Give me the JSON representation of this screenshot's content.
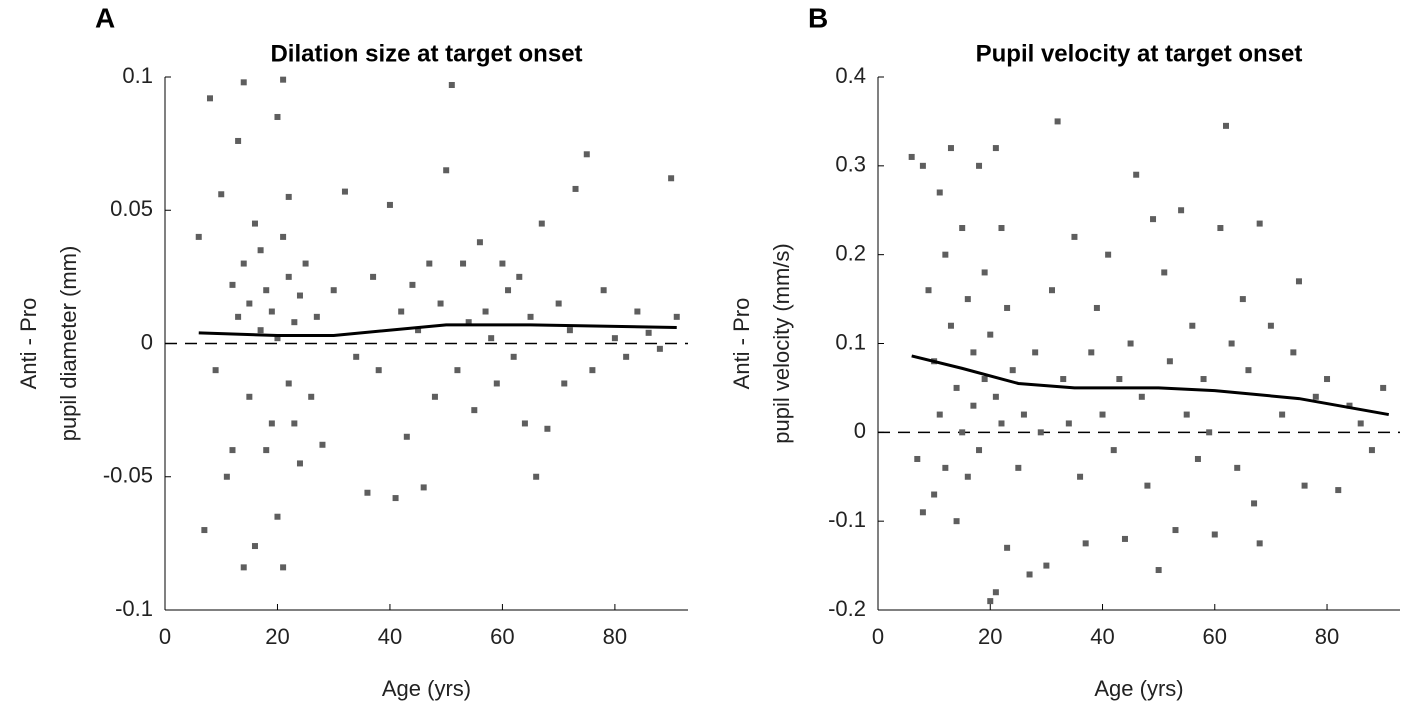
{
  "chart_data": [
    {
      "type": "scatter",
      "panel": "A",
      "title": "Dilation size at target onset",
      "xlabel": "Age (yrs)",
      "ylabel": [
        "Anti - Pro",
        "pupil diameter (mm)"
      ],
      "xlim": [
        0,
        93
      ],
      "ylim": [
        -0.1,
        0.1
      ],
      "xticks": [
        0,
        20,
        40,
        60,
        80
      ],
      "yticks": [
        -0.1,
        -0.05,
        0,
        0.05,
        0.1
      ],
      "hline": 0,
      "series": [
        {
          "type": "scatter",
          "color": "#5e5e5e",
          "x": [
            6,
            8,
            7,
            9,
            10,
            11,
            12,
            12,
            13,
            13,
            14,
            14,
            14,
            15,
            15,
            16,
            16,
            17,
            17,
            18,
            18,
            19,
            19,
            20,
            20,
            20,
            21,
            21,
            21,
            22,
            22,
            22,
            23,
            23,
            24,
            24,
            25,
            26,
            27,
            28,
            30,
            32,
            34,
            36,
            37,
            38,
            40,
            41,
            42,
            43,
            44,
            45,
            46,
            47,
            48,
            49,
            50,
            51,
            52,
            53,
            54,
            55,
            56,
            57,
            58,
            59,
            60,
            61,
            62,
            63,
            64,
            65,
            66,
            67,
            68,
            70,
            71,
            72,
            73,
            75,
            76,
            78,
            80,
            82,
            84,
            86,
            88,
            90,
            91
          ],
          "values": [
            0.04,
            0.092,
            -0.07,
            -0.01,
            0.056,
            -0.05,
            0.022,
            -0.04,
            0.076,
            0.01,
            0.098,
            -0.084,
            0.03,
            0.015,
            -0.02,
            0.045,
            -0.076,
            0.005,
            0.035,
            -0.04,
            0.02,
            0.012,
            -0.03,
            0.085,
            -0.065,
            0.002,
            0.099,
            -0.084,
            0.04,
            0.025,
            -0.015,
            0.055,
            -0.03,
            0.008,
            0.018,
            -0.045,
            0.03,
            -0.02,
            0.01,
            -0.038,
            0.02,
            0.057,
            -0.005,
            -0.056,
            0.025,
            -0.01,
            0.052,
            -0.058,
            0.012,
            -0.035,
            0.022,
            0.005,
            -0.054,
            0.03,
            -0.02,
            0.015,
            0.065,
            0.097,
            -0.01,
            0.03,
            0.008,
            -0.025,
            0.038,
            0.012,
            0.002,
            -0.015,
            0.03,
            0.02,
            -0.005,
            0.025,
            -0.03,
            0.01,
            -0.05,
            0.045,
            -0.032,
            0.015,
            -0.015,
            0.005,
            0.058,
            0.071,
            -0.01,
            0.02,
            0.002,
            -0.005,
            0.012,
            0.004,
            -0.002,
            0.062,
            0.01
          ]
        },
        {
          "type": "line",
          "color": "#000000",
          "x": [
            6,
            20,
            30,
            50,
            65,
            91
          ],
          "values": [
            0.004,
            0.003,
            0.003,
            0.007,
            0.007,
            0.006
          ]
        }
      ]
    },
    {
      "type": "scatter",
      "panel": "B",
      "title": "Pupil velocity at target onset",
      "xlabel": "Age (yrs)",
      "ylabel": [
        "Anti - Pro",
        "pupil velocity (mm/s)"
      ],
      "xlim": [
        0,
        93
      ],
      "ylim": [
        -0.2,
        0.4
      ],
      "xticks": [
        0,
        20,
        40,
        60,
        80
      ],
      "yticks": [
        -0.2,
        -0.1,
        0,
        0.1,
        0.2,
        0.3,
        0.4
      ],
      "hline": 0,
      "series": [
        {
          "type": "scatter",
          "color": "#5e5e5e",
          "x": [
            6,
            7,
            8,
            8,
            9,
            10,
            10,
            11,
            11,
            12,
            12,
            13,
            13,
            14,
            14,
            15,
            15,
            16,
            16,
            17,
            17,
            18,
            18,
            19,
            19,
            20,
            20,
            21,
            21,
            21,
            22,
            22,
            23,
            23,
            24,
            25,
            26,
            27,
            28,
            29,
            30,
            31,
            32,
            33,
            34,
            35,
            36,
            37,
            38,
            39,
            40,
            41,
            42,
            43,
            44,
            45,
            46,
            47,
            48,
            49,
            50,
            51,
            52,
            53,
            54,
            55,
            56,
            57,
            58,
            59,
            60,
            61,
            62,
            63,
            64,
            65,
            66,
            67,
            68,
            68,
            70,
            72,
            74,
            75,
            76,
            78,
            80,
            82,
            84,
            86,
            88,
            90
          ],
          "values": [
            0.31,
            -0.03,
            0.3,
            -0.09,
            0.16,
            0.08,
            -0.07,
            0.27,
            0.02,
            0.2,
            -0.04,
            0.32,
            0.12,
            0.05,
            -0.1,
            0.23,
            0.0,
            0.15,
            -0.05,
            0.09,
            0.03,
            0.3,
            -0.02,
            0.18,
            0.06,
            -0.19,
            0.11,
            0.32,
            -0.18,
            0.04,
            0.23,
            0.01,
            0.14,
            -0.13,
            0.07,
            -0.04,
            0.02,
            -0.16,
            0.09,
            0.0,
            -0.15,
            0.16,
            0.35,
            0.06,
            0.01,
            0.22,
            -0.05,
            -0.125,
            0.09,
            0.14,
            0.02,
            0.2,
            -0.02,
            0.06,
            -0.12,
            0.1,
            0.29,
            0.04,
            -0.06,
            0.24,
            -0.155,
            0.18,
            0.08,
            -0.11,
            0.25,
            0.02,
            0.12,
            -0.03,
            0.06,
            0.0,
            -0.115,
            0.23,
            0.345,
            0.1,
            -0.04,
            0.15,
            0.07,
            -0.08,
            0.235,
            -0.125,
            0.12,
            0.02,
            0.09,
            0.17,
            -0.06,
            0.04,
            0.06,
            -0.065,
            0.03,
            0.01,
            -0.02,
            0.05
          ]
        },
        {
          "type": "line",
          "color": "#000000",
          "x": [
            6,
            15,
            25,
            35,
            50,
            60,
            75,
            91
          ],
          "values": [
            0.086,
            0.072,
            0.055,
            0.05,
            0.05,
            0.047,
            0.038,
            0.02
          ]
        }
      ]
    }
  ]
}
